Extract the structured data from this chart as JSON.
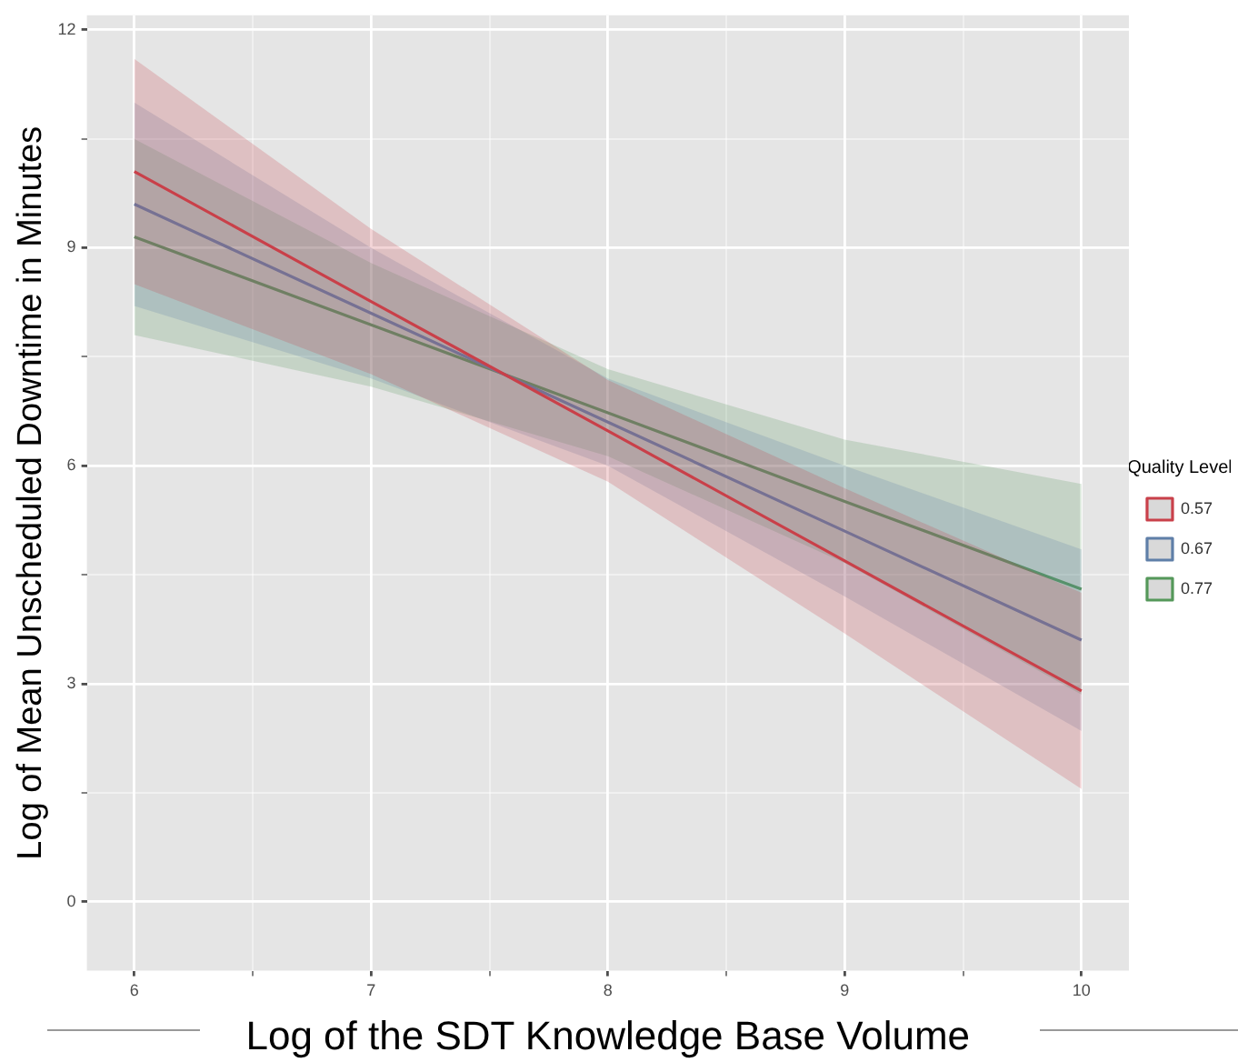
{
  "chart_data": {
    "type": "line",
    "xlabel": "Log of the SDT Knowledge Base Volume",
    "ylabel": "Log of Mean Unscheduled Downtime in Minutes",
    "legend_title": "Quality Level",
    "legend": "right",
    "grid": true,
    "marker": "none",
    "line_style": "solid",
    "xlim": [
      5.8,
      10.2
    ],
    "ylim": [
      -0.95,
      12.2
    ],
    "xticks": [
      6,
      {
        "value": 6.5,
        "label": null
      },
      7,
      {
        "value": 7.5,
        "label": null
      },
      8,
      {
        "value": 8.5,
        "label": null
      },
      9,
      {
        "value": 9.5,
        "label": null
      },
      10
    ],
    "yticks": [
      0,
      {
        "value": 1.5,
        "label": null
      },
      3,
      {
        "value": 4.5,
        "label": null
      },
      6,
      {
        "value": 7.5,
        "label": null
      },
      9,
      {
        "value": 10.5,
        "label": null
      },
      12
    ],
    "x": [
      6,
      7,
      8,
      9,
      10
    ],
    "series": [
      {
        "name": "0.57",
        "color": "#c9404a",
        "values": [
          10.05,
          8.26,
          6.48,
          4.69,
          2.9
        ],
        "lower": [
          8.5,
          7.26,
          5.78,
          3.69,
          1.55
        ],
        "upper": [
          11.6,
          9.26,
          7.18,
          5.69,
          4.25
        ]
      },
      {
        "name": "0.67",
        "color": "#5f7fa8",
        "values": [
          9.6,
          8.1,
          6.6,
          5.1,
          3.6
        ],
        "lower": [
          8.2,
          7.2,
          6.0,
          4.2,
          2.35
        ],
        "upper": [
          11.0,
          9.0,
          7.2,
          6.0,
          4.85
        ]
      },
      {
        "name": "0.77",
        "color": "#55985a",
        "values": [
          9.15,
          7.94,
          6.73,
          5.51,
          4.3
        ],
        "lower": [
          7.8,
          7.09,
          6.13,
          4.66,
          2.85
        ],
        "upper": [
          10.5,
          8.79,
          7.33,
          6.36,
          5.75
        ]
      }
    ]
  }
}
